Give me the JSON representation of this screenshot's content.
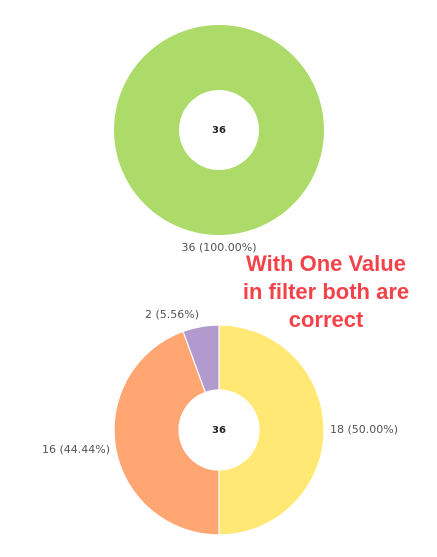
{
  "chart_data": [
    {
      "type": "pie",
      "variant": "donut",
      "center_label": "36",
      "slices": [
        {
          "value": 36,
          "label": "36 (100.00%)",
          "color": "#acdb6a"
        }
      ]
    },
    {
      "type": "pie",
      "variant": "donut",
      "center_label": "36",
      "slices": [
        {
          "value": 18,
          "label": "18 (50.00%)",
          "color": "#ffe873"
        },
        {
          "value": 16,
          "label": "16 (44.44%)",
          "color": "#ffa673"
        },
        {
          "value": 2,
          "label": "2 (5.56%)",
          "color": "#b19ace"
        }
      ]
    }
  ],
  "annotation": {
    "lines": [
      "With One Value",
      "in filter both are",
      "correct"
    ],
    "color": "#f2434a"
  }
}
